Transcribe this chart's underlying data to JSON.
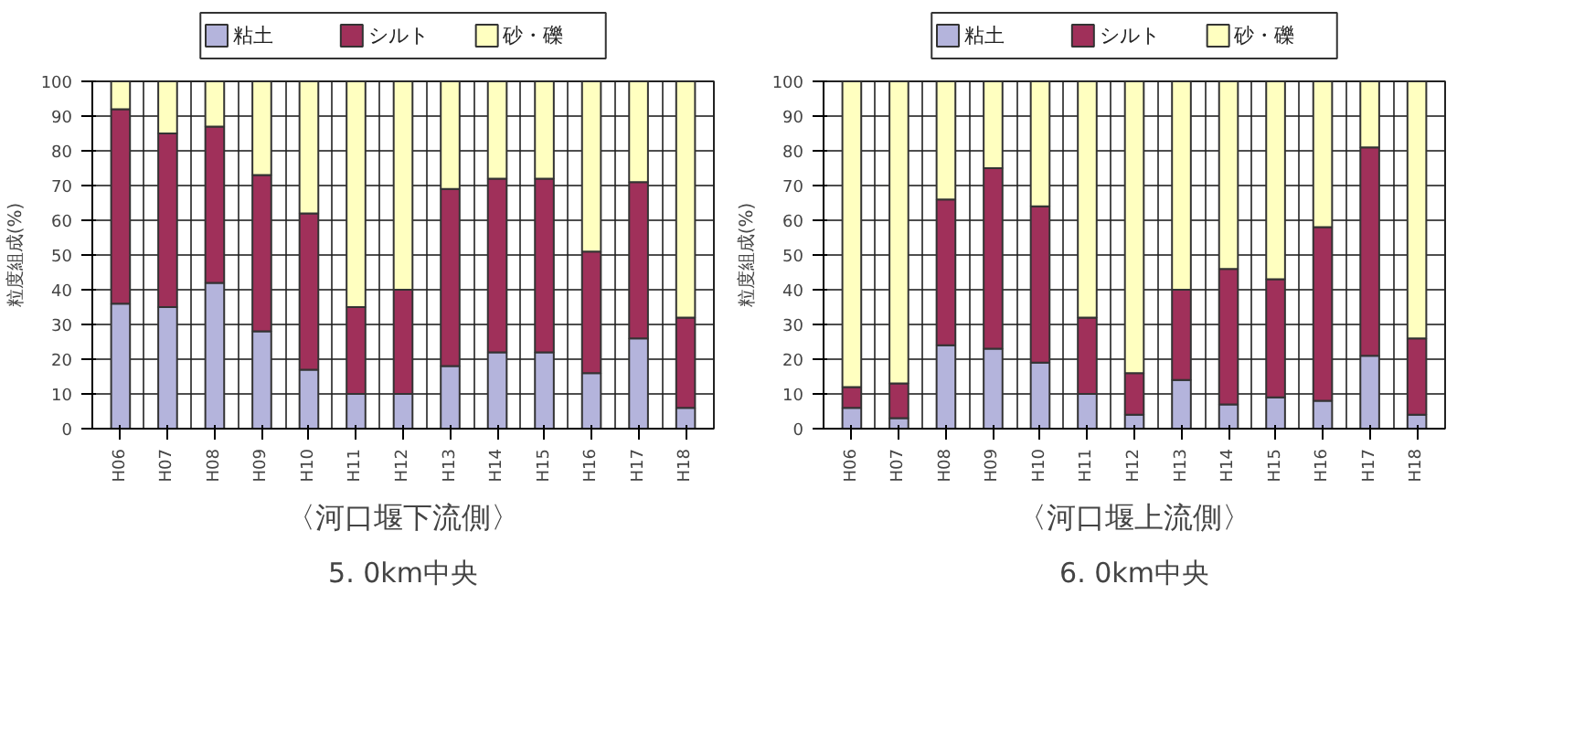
{
  "chart_data": [
    {
      "type": "bar",
      "stacked": true,
      "title": "〈河口堰下流側〉",
      "subtitle": "5. 0km中央",
      "ylabel": "粒度組成(%)",
      "categories": [
        "H06",
        "H07",
        "H08",
        "H09",
        "H10",
        "H11",
        "H12",
        "H13",
        "H14",
        "H15",
        "H16",
        "H17",
        "H18"
      ],
      "ylim": [
        0,
        100
      ],
      "yticks": [
        0,
        10,
        20,
        30,
        40,
        50,
        60,
        70,
        80,
        90,
        100
      ],
      "grid": true,
      "legend": "top",
      "series": [
        {
          "name": "粘土",
          "color": "#b4b4dc",
          "values": [
            36,
            35,
            42,
            28,
            17,
            10,
            10,
            18,
            22,
            22,
            16,
            26,
            6
          ]
        },
        {
          "name": "シルト",
          "color": "#a0305a",
          "values": [
            56,
            50,
            45,
            45,
            45,
            25,
            30,
            51,
            50,
            50,
            35,
            45,
            26
          ]
        },
        {
          "name": "砂・礫",
          "color": "#ffffc0",
          "values": [
            8,
            15,
            13,
            27,
            38,
            65,
            60,
            31,
            28,
            28,
            49,
            29,
            68
          ]
        }
      ]
    },
    {
      "type": "bar",
      "stacked": true,
      "title": "〈河口堰上流側〉",
      "subtitle": "6. 0km中央",
      "ylabel": "粒度組成(%)",
      "categories": [
        "H06",
        "H07",
        "H08",
        "H09",
        "H10",
        "H11",
        "H12",
        "H13",
        "H14",
        "H15",
        "H16",
        "H17",
        "H18"
      ],
      "ylim": [
        0,
        100
      ],
      "yticks": [
        0,
        10,
        20,
        30,
        40,
        50,
        60,
        70,
        80,
        90,
        100
      ],
      "grid": true,
      "legend": "top",
      "series": [
        {
          "name": "粘土",
          "color": "#b4b4dc",
          "values": [
            6,
            3,
            24,
            23,
            19,
            10,
            4,
            14,
            7,
            9,
            8,
            21,
            4
          ]
        },
        {
          "name": "シルト",
          "color": "#a0305a",
          "values": [
            6,
            10,
            42,
            52,
            45,
            22,
            12,
            26,
            39,
            34,
            50,
            60,
            22
          ]
        },
        {
          "name": "砂・礫",
          "color": "#ffffc0",
          "values": [
            88,
            87,
            34,
            25,
            36,
            68,
            84,
            60,
            54,
            57,
            42,
            19,
            74
          ]
        }
      ]
    }
  ]
}
